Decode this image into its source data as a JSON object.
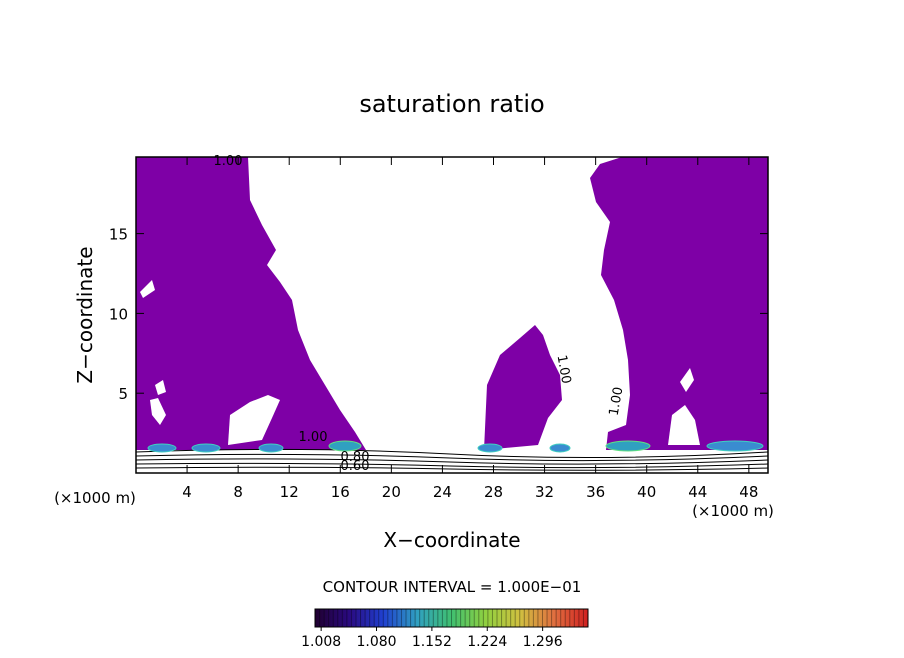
{
  "chart_data": {
    "type": "contour",
    "title": "saturation ratio",
    "xlabel": "X−coordinate",
    "ylabel": "Z−coordinate",
    "x_unit_label": "(×1000 m)",
    "y_unit_label": "(×1000 m)",
    "xlim": [
      0,
      49.5
    ],
    "ylim": [
      0,
      19.8
    ],
    "xticks": [
      4,
      8,
      12,
      16,
      20,
      24,
      28,
      32,
      36,
      40,
      44,
      48
    ],
    "yticks": [
      5,
      10,
      15
    ],
    "contour_labels": [
      "1.00",
      "1.00",
      "1.00",
      "1.00",
      "0.80",
      "0.60"
    ],
    "fill_color": "#7e00a6",
    "contour_interval_text": "CONTOUR INTERVAL = 1.000E−01",
    "clim": [
      1.0,
      1.355
    ],
    "colorbar_ticks": [
      {
        "value": 1.008,
        "label": "1.008"
      },
      {
        "value": 1.08,
        "label": "1.080"
      },
      {
        "value": 1.152,
        "label": "1.152"
      },
      {
        "value": 1.224,
        "label": "1.224"
      },
      {
        "value": 1.296,
        "label": "1.296"
      }
    ],
    "colormap": [
      "#200030",
      "#2a0a80",
      "#2040d0",
      "#30a0c0",
      "#40c070",
      "#90d040",
      "#d0c040",
      "#e07040",
      "#d02020"
    ]
  }
}
